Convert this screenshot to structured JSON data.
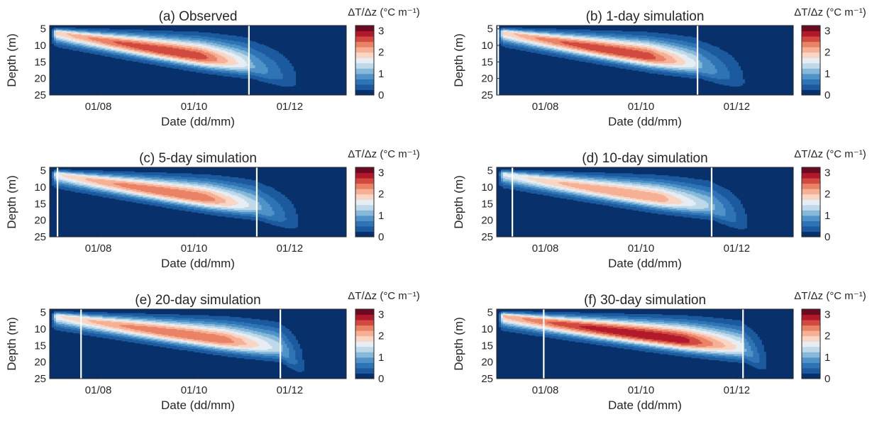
{
  "figure": {
    "colorbar_title": "ΔT/Δz (°C m⁻¹)",
    "colorbar_ticks": [
      "0",
      "1",
      "2",
      "3"
    ],
    "colorbar_levels": [
      0,
      0.25,
      0.5,
      0.75,
      1.0,
      1.25,
      1.5,
      1.75,
      2.0,
      2.25,
      2.5,
      2.75,
      3.0
    ],
    "colormap": [
      "#08306b",
      "#1c5a9f",
      "#2f74b5",
      "#4f93c8",
      "#86b8d9",
      "#bfd9ea",
      "#e6eef3",
      "#f9d6c4",
      "#f6b096",
      "#ea8266",
      "#d24a3f",
      "#b21a2b",
      "#6b0a20"
    ],
    "xlabel": "Date (dd/mm)",
    "ylabel": "Depth (m)",
    "x_tick_labels": [
      "01/08",
      "01/10",
      "01/12"
    ],
    "y_tick_labels": [
      "5",
      "10",
      "15",
      "20",
      "25"
    ],
    "line_color": "#ffffff"
  },
  "chart_data": [
    {
      "type": "heatmap",
      "title": "(a) Observed",
      "xlabel": "Date (dd/mm)",
      "ylabel": "Depth (m)",
      "x_range": [
        "2023-07-01",
        "2024-01-06"
      ],
      "y_range": [
        4,
        25
      ],
      "x_ticks": [
        "01/08",
        "01/10",
        "01/12"
      ],
      "y_ticks": [
        5,
        10,
        15,
        20,
        25
      ],
      "colorbar": {
        "label": "ΔT/Δz (°C m⁻¹)",
        "range": [
          0,
          3
        ],
        "ticks": [
          0,
          1,
          2,
          3
        ]
      },
      "vertical_lines": [
        "2023-11-05"
      ],
      "thermocline_depth_m": [
        {
          "date": "2023-07-05",
          "depth": 6
        },
        {
          "date": "2023-11-05",
          "depth": 16
        },
        {
          "date": "2023-12-10",
          "depth": 22
        }
      ],
      "max_gradient": 2.75
    },
    {
      "type": "heatmap",
      "title": "(b) 1-day simulation",
      "xlabel": "Date (dd/mm)",
      "ylabel": "Depth (m)",
      "x_range": [
        "2023-07-01",
        "2024-01-06"
      ],
      "y_range": [
        4,
        25
      ],
      "x_ticks": [
        "01/08",
        "01/10",
        "01/12"
      ],
      "y_ticks": [
        5,
        10,
        15,
        20,
        25
      ],
      "colorbar": {
        "label": "ΔT/Δz (°C m⁻¹)",
        "range": [
          0,
          3
        ],
        "ticks": [
          0,
          1,
          2,
          3
        ]
      },
      "vertical_lines": [
        "2023-07-02",
        "2023-11-06"
      ],
      "thermocline_depth_m": [
        {
          "date": "2023-07-05",
          "depth": 6
        },
        {
          "date": "2023-11-06",
          "depth": 16
        },
        {
          "date": "2023-12-10",
          "depth": 22
        }
      ],
      "max_gradient": 2.75
    },
    {
      "type": "heatmap",
      "title": "(c) 5-day simulation",
      "xlabel": "Date (dd/mm)",
      "ylabel": "Depth (m)",
      "x_range": [
        "2023-07-01",
        "2024-01-06"
      ],
      "y_range": [
        4,
        25
      ],
      "x_ticks": [
        "01/08",
        "01/10",
        "01/12"
      ],
      "y_ticks": [
        5,
        10,
        15,
        20,
        25
      ],
      "colorbar": {
        "label": "ΔT/Δz (°C m⁻¹)",
        "range": [
          0,
          3
        ],
        "ticks": [
          0,
          1,
          2,
          3
        ]
      },
      "vertical_lines": [
        "2023-07-06",
        "2023-11-10"
      ],
      "thermocline_depth_m": [
        {
          "date": "2023-07-05",
          "depth": 6
        },
        {
          "date": "2023-11-10",
          "depth": 16
        },
        {
          "date": "2023-12-10",
          "depth": 22
        }
      ],
      "max_gradient": 2.5
    },
    {
      "type": "heatmap",
      "title": "(d) 10-day simulation",
      "xlabel": "Date (dd/mm)",
      "ylabel": "Depth (m)",
      "x_range": [
        "2023-07-01",
        "2024-01-06"
      ],
      "y_range": [
        4,
        25
      ],
      "x_ticks": [
        "01/08",
        "01/10",
        "01/12"
      ],
      "y_ticks": [
        5,
        10,
        15,
        20,
        25
      ],
      "colorbar": {
        "label": "ΔT/Δz (°C m⁻¹)",
        "range": [
          0,
          3
        ],
        "ticks": [
          0,
          1,
          2,
          3
        ]
      },
      "vertical_lines": [
        "2023-07-11",
        "2023-11-15"
      ],
      "thermocline_depth_m": [
        {
          "date": "2023-07-05",
          "depth": 6
        },
        {
          "date": "2023-11-15",
          "depth": 16
        },
        {
          "date": "2023-12-10",
          "depth": 22
        }
      ],
      "max_gradient": 2.25
    },
    {
      "type": "heatmap",
      "title": "(e) 20-day simulation",
      "xlabel": "Date (dd/mm)",
      "ylabel": "Depth (m)",
      "x_range": [
        "2023-07-01",
        "2024-01-06"
      ],
      "y_range": [
        4,
        25
      ],
      "x_ticks": [
        "01/08",
        "01/10",
        "01/12"
      ],
      "y_ticks": [
        5,
        10,
        15,
        20,
        25
      ],
      "colorbar": {
        "label": "ΔT/Δz (°C m⁻¹)",
        "range": [
          0,
          3
        ],
        "ticks": [
          0,
          1,
          2,
          3
        ]
      },
      "vertical_lines": [
        "2023-07-21",
        "2023-11-25"
      ],
      "thermocline_depth_m": [
        {
          "date": "2023-07-05",
          "depth": 6
        },
        {
          "date": "2023-11-25",
          "depth": 16
        },
        {
          "date": "2023-12-10",
          "depth": 22
        }
      ],
      "max_gradient": 2.5
    },
    {
      "type": "heatmap",
      "title": "(f) 30-day simulation",
      "xlabel": "Date (dd/mm)",
      "ylabel": "Depth (m)",
      "x_range": [
        "2023-07-01",
        "2024-01-06"
      ],
      "y_range": [
        4,
        25
      ],
      "x_ticks": [
        "01/08",
        "01/10",
        "01/12"
      ],
      "y_ticks": [
        5,
        10,
        15,
        20,
        25
      ],
      "colorbar": {
        "label": "ΔT/Δz (°C m⁻¹)",
        "range": [
          0,
          3
        ],
        "ticks": [
          0,
          1,
          2,
          3
        ]
      },
      "vertical_lines": [
        "2023-07-31",
        "2023-12-05"
      ],
      "thermocline_depth_m": [
        {
          "date": "2023-07-05",
          "depth": 6
        },
        {
          "date": "2023-12-05",
          "depth": 16
        },
        {
          "date": "2023-12-20",
          "depth": 21
        }
      ],
      "max_gradient": 3.0
    }
  ]
}
